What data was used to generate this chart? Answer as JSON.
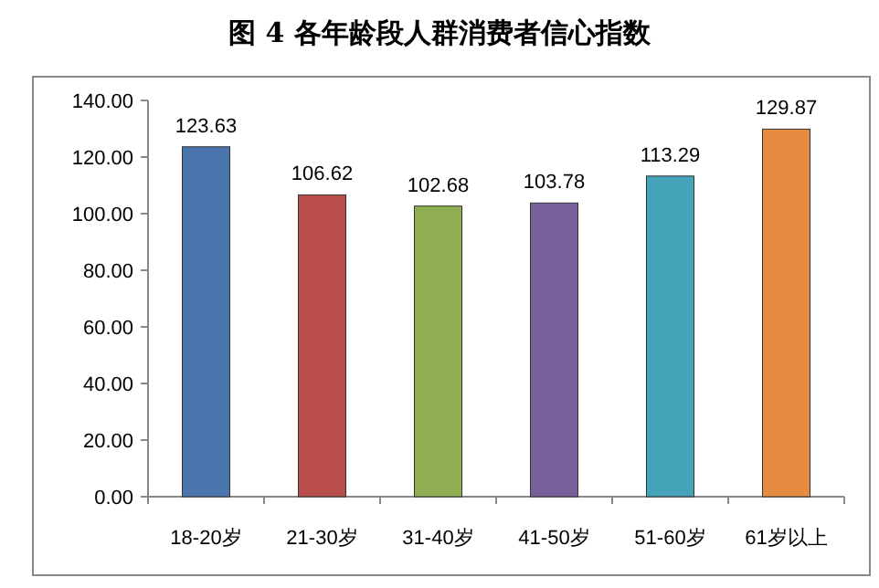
{
  "chart_data": {
    "type": "bar",
    "title": "图 4 各年龄段人群消费者信心指数",
    "categories": [
      "18-20岁",
      "21-30岁",
      "31-40岁",
      "41-50岁",
      "51-60岁",
      "61岁以上"
    ],
    "values": [
      123.63,
      106.62,
      102.68,
      103.78,
      113.29,
      129.87
    ],
    "colors": [
      "#4a76ad",
      "#b84d4a",
      "#8faf52",
      "#785f99",
      "#45a3ba",
      "#e68b42"
    ],
    "ylim": [
      0,
      140
    ],
    "yticks": [
      {
        "value": 0,
        "label": "0.00"
      },
      {
        "value": 20,
        "label": "20.00"
      },
      {
        "value": 40,
        "label": "40.00"
      },
      {
        "value": 60,
        "label": "60.00"
      },
      {
        "value": 80,
        "label": "80.00"
      },
      {
        "value": 100,
        "label": "100.00"
      },
      {
        "value": 120,
        "label": "120.00"
      },
      {
        "value": 140,
        "label": "140.00"
      }
    ],
    "data_labels": true
  }
}
